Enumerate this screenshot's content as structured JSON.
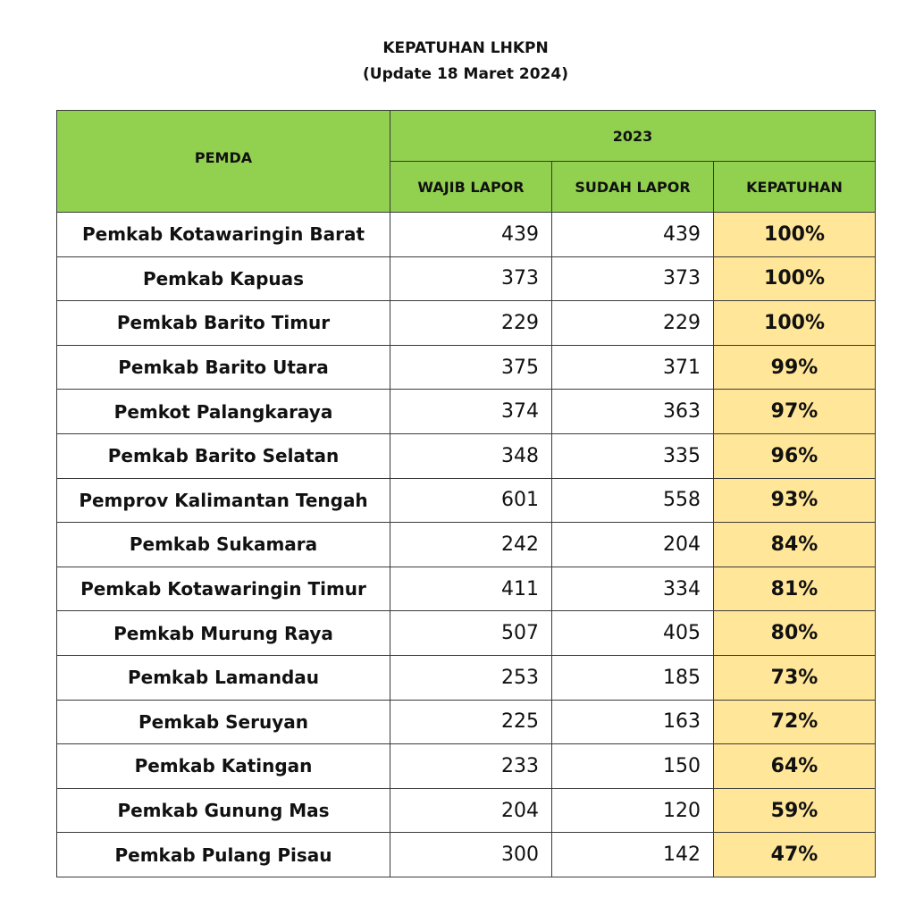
{
  "title": "KEPATUHAN LHKPN",
  "subtitle": "(Update 18 Maret 2024)",
  "header": {
    "pemda": "PEMDA",
    "year": "2023",
    "wajib_lapor": "WAJIB LAPOR",
    "sudah_lapor": "SUDAH LAPOR",
    "kepatuhan": "KEPATUHAN"
  },
  "colors": {
    "header_bg": "#92d050",
    "kepatuhan_bg": "#ffe699",
    "border": "#3a3a3a"
  },
  "rows": [
    {
      "pemda": "Pemkab Kotawaringin Barat",
      "wajib": "439",
      "sudah": "439",
      "kepatuhan": "100%"
    },
    {
      "pemda": "Pemkab Kapuas",
      "wajib": "373",
      "sudah": "373",
      "kepatuhan": "100%"
    },
    {
      "pemda": "Pemkab Barito Timur",
      "wajib": "229",
      "sudah": "229",
      "kepatuhan": "100%"
    },
    {
      "pemda": "Pemkab Barito Utara",
      "wajib": "375",
      "sudah": "371",
      "kepatuhan": "99%"
    },
    {
      "pemda": "Pemkot Palangkaraya",
      "wajib": "374",
      "sudah": "363",
      "kepatuhan": "97%"
    },
    {
      "pemda": "Pemkab Barito Selatan",
      "wajib": "348",
      "sudah": "335",
      "kepatuhan": "96%"
    },
    {
      "pemda": "Pemprov Kalimantan Tengah",
      "wajib": "601",
      "sudah": "558",
      "kepatuhan": "93%"
    },
    {
      "pemda": "Pemkab Sukamara",
      "wajib": "242",
      "sudah": "204",
      "kepatuhan": "84%"
    },
    {
      "pemda": "Pemkab Kotawaringin Timur",
      "wajib": "411",
      "sudah": "334",
      "kepatuhan": "81%"
    },
    {
      "pemda": "Pemkab Murung Raya",
      "wajib": "507",
      "sudah": "405",
      "kepatuhan": "80%"
    },
    {
      "pemda": "Pemkab Lamandau",
      "wajib": "253",
      "sudah": "185",
      "kepatuhan": "73%"
    },
    {
      "pemda": "Pemkab Seruyan",
      "wajib": "225",
      "sudah": "163",
      "kepatuhan": "72%"
    },
    {
      "pemda": "Pemkab Katingan",
      "wajib": "233",
      "sudah": "150",
      "kepatuhan": "64%"
    },
    {
      "pemda": "Pemkab Gunung Mas",
      "wajib": "204",
      "sudah": "120",
      "kepatuhan": "59%"
    },
    {
      "pemda": "Pemkab Pulang Pisau",
      "wajib": "300",
      "sudah": "142",
      "kepatuhan": "47%"
    }
  ]
}
